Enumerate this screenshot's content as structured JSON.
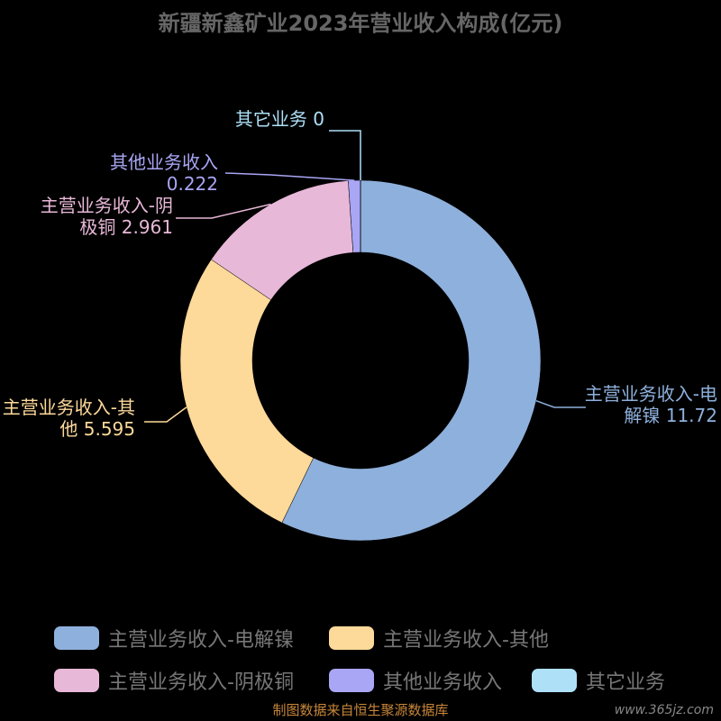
{
  "chart_data": {
    "type": "donut",
    "title": "新疆新鑫矿业2023年营业收入构成(亿元)",
    "categories": [
      "主营业务收入-电解镍",
      "主营业务收入-其他",
      "主营业务收入-阴极铜",
      "其他业务收入",
      "其它业务"
    ],
    "values": [
      11.72,
      5.595,
      2.961,
      0.222,
      0
    ],
    "colors": [
      "#8eb0dc",
      "#fdd99a",
      "#e8b8d8",
      "#a9a6f5",
      "#aee0f8"
    ],
    "legend": "bottom",
    "source": "制图数据来自恒生聚源数据库",
    "watermark": "www.365jz.com"
  }
}
